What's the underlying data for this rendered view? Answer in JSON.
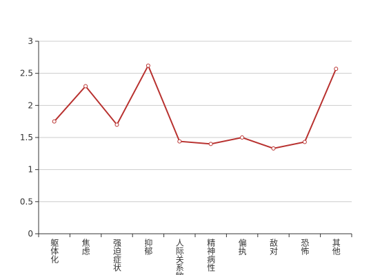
{
  "chart_data": {
    "type": "line",
    "categories": [
      "躯体化",
      "焦虑",
      "强迫症状",
      "抑郁",
      "人际关系敏感",
      "精神病性",
      "偏执",
      "敌对",
      "恐怖",
      "其他"
    ],
    "values": [
      1.75,
      2.3,
      1.7,
      2.62,
      1.44,
      1.4,
      1.5,
      1.33,
      1.43,
      2.57
    ],
    "color": "#b8312f",
    "ylim": [
      0,
      3
    ],
    "yticks": [
      0,
      0.5,
      1,
      1.5,
      2,
      2.5,
      3
    ],
    "grid": true
  }
}
